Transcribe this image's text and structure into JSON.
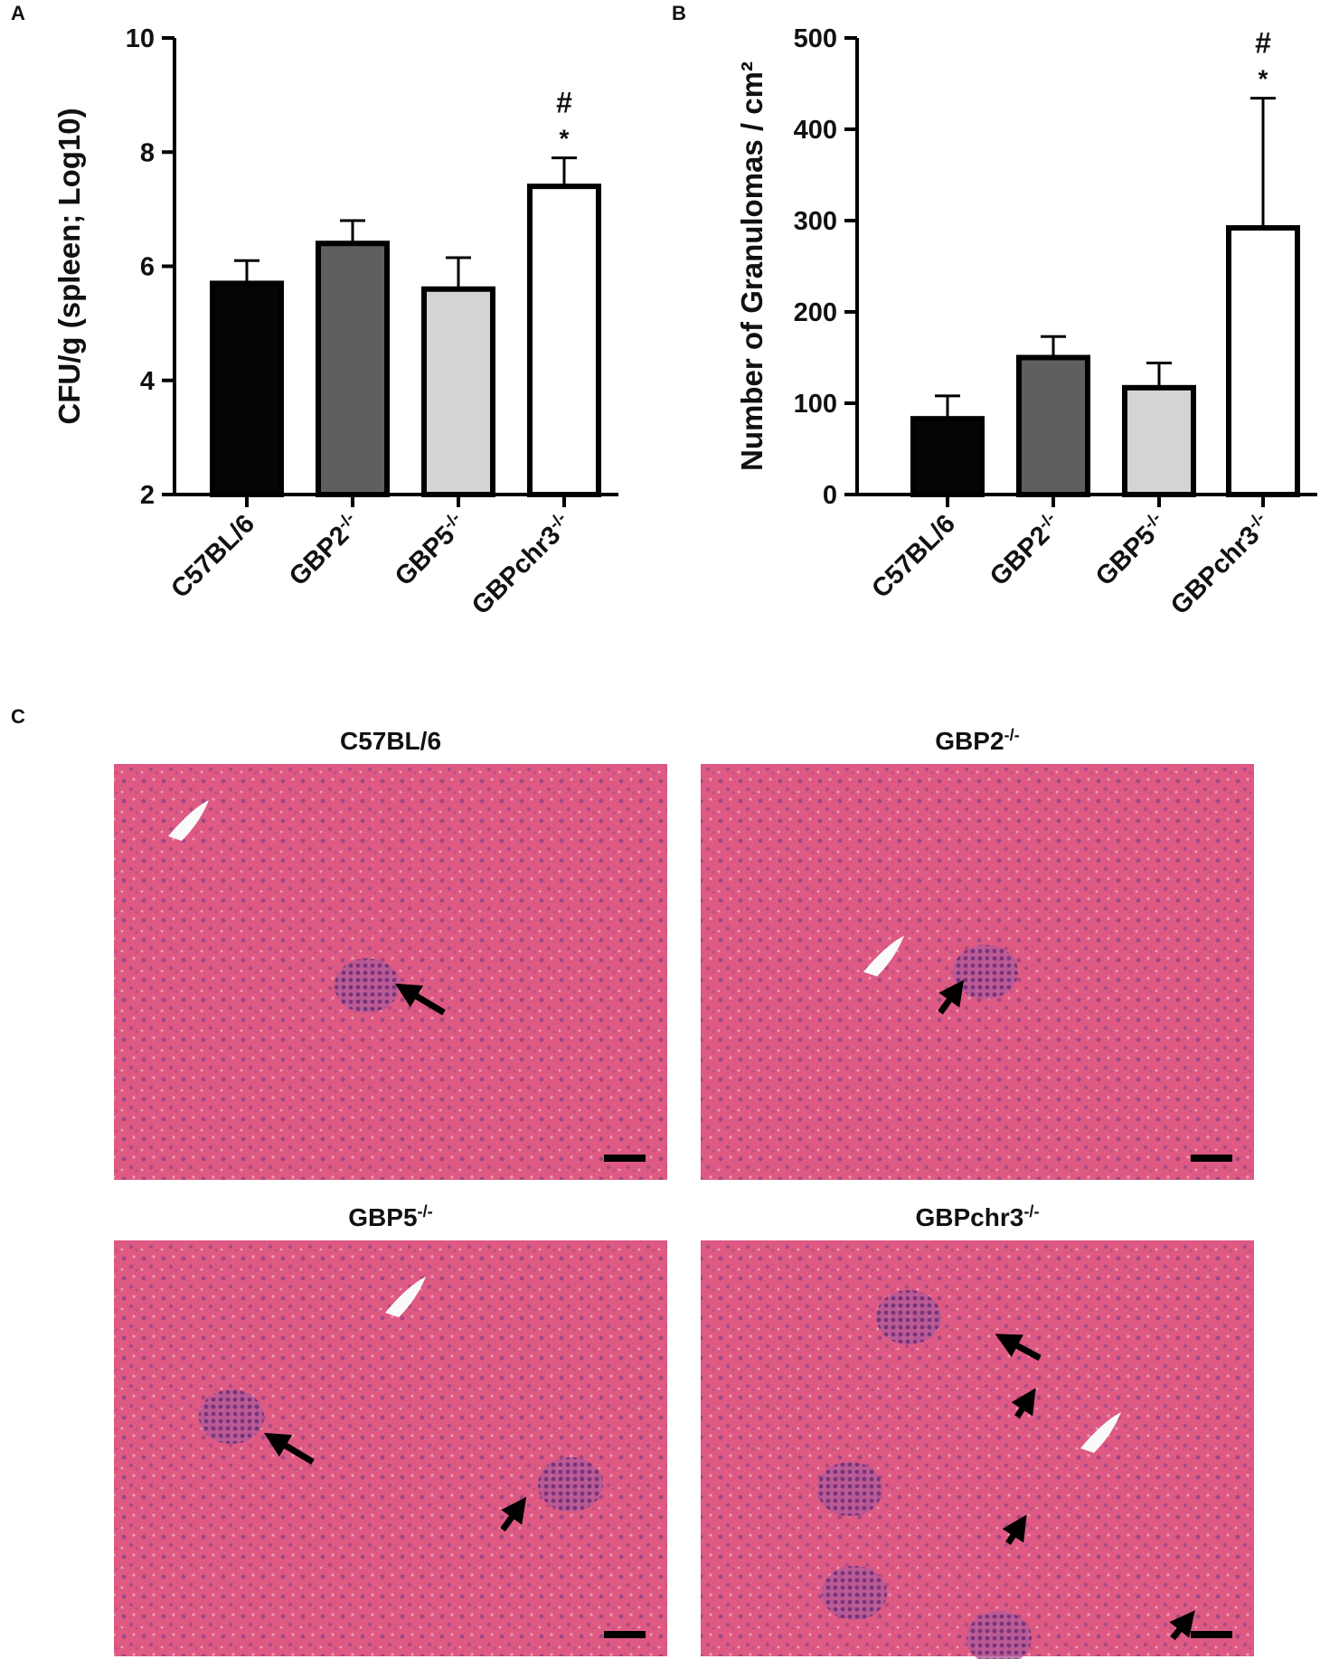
{
  "chart_data": [
    {
      "type": "bar",
      "panel": "A",
      "y_label": "CFU/g (spleen; Log10)",
      "categories": [
        "C57BL/6",
        "GBP2-/-",
        "GBP5-/-",
        "GBPchr3-/-"
      ],
      "values": [
        5.7,
        6.4,
        5.6,
        7.4
      ],
      "errors": [
        0.4,
        0.4,
        0.55,
        0.5
      ],
      "colors": [
        "#050505",
        "#5f5f5f",
        "#d4d4d4",
        "#ffffff"
      ],
      "ylim": [
        2,
        10
      ],
      "yticks": [
        2,
        4,
        6,
        8,
        10
      ],
      "annotations": [
        "#",
        "*"
      ]
    },
    {
      "type": "bar",
      "panel": "B",
      "y_label": "Number of Granulomas / cm²",
      "categories": [
        "C57BL/6",
        "GBP2-/-",
        "GBP5-/-",
        "GBPchr3-/-"
      ],
      "values": [
        83,
        150,
        117,
        292
      ],
      "errors": [
        25,
        23,
        27,
        142
      ],
      "colors": [
        "#050505",
        "#5f5f5f",
        "#d4d4d4",
        "#ffffff"
      ],
      "ylim": [
        0,
        500
      ],
      "yticks": [
        0,
        100,
        200,
        300,
        400,
        500
      ],
      "annotations": [
        "#",
        "*"
      ]
    }
  ],
  "histology": {
    "panel": "C",
    "images": [
      {
        "title": "C57BL/6"
      },
      {
        "title": "GBP2-/-"
      },
      {
        "title": "GBP5-/-"
      },
      {
        "title": "GBPchr3-/-"
      }
    ]
  }
}
